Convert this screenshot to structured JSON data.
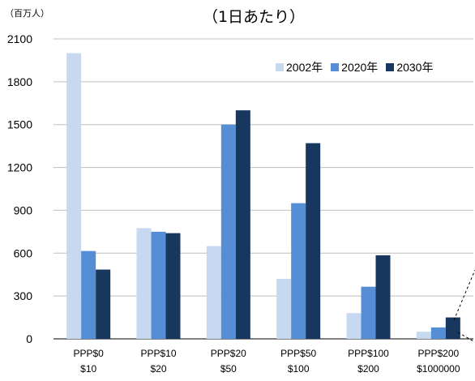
{
  "chart_data": {
    "type": "bar",
    "title": "（1日あたり）",
    "unit_label": "（百万人）",
    "categories": [
      [
        "PPP$0",
        "$10"
      ],
      [
        "PPP$10",
        "$20"
      ],
      [
        "PPP$20",
        "$50"
      ],
      [
        "PPP$50",
        "$100"
      ],
      [
        "PPP$100",
        "$200"
      ],
      [
        "PPP$200",
        "$1000000"
      ]
    ],
    "series": [
      {
        "name": "2002年",
        "color": "#c6d9f0",
        "values": [
          2000,
          775,
          650,
          420,
          180,
          50
        ]
      },
      {
        "name": "2020年",
        "color": "#558ed5",
        "values": [
          615,
          750,
          1500,
          950,
          365,
          80
        ]
      },
      {
        "name": "2030年",
        "color": "#17375e",
        "values": [
          485,
          740,
          1600,
          1370,
          585,
          150
        ]
      }
    ],
    "yticks": [
      "0",
      "300",
      "600",
      "900",
      "1200",
      "1500",
      "1800",
      "2100"
    ],
    "ylim": [
      0,
      2100
    ],
    "grid": true,
    "legend_position": "top-right"
  }
}
